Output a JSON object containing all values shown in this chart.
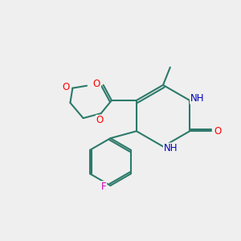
{
  "background_color": "#efefef",
  "bond_color": "#2d7a6a",
  "bond_width": 1.5,
  "atom_colors": {
    "O": "#ff0000",
    "N": "#0000bb",
    "F": "#cc00bb",
    "C": "#000000",
    "H": "#4a8888"
  },
  "font_size": 8.5,
  "fig_size": [
    3.0,
    3.0
  ],
  "dpi": 100,
  "xlim": [
    0,
    10
  ],
  "ylim": [
    0,
    10
  ]
}
